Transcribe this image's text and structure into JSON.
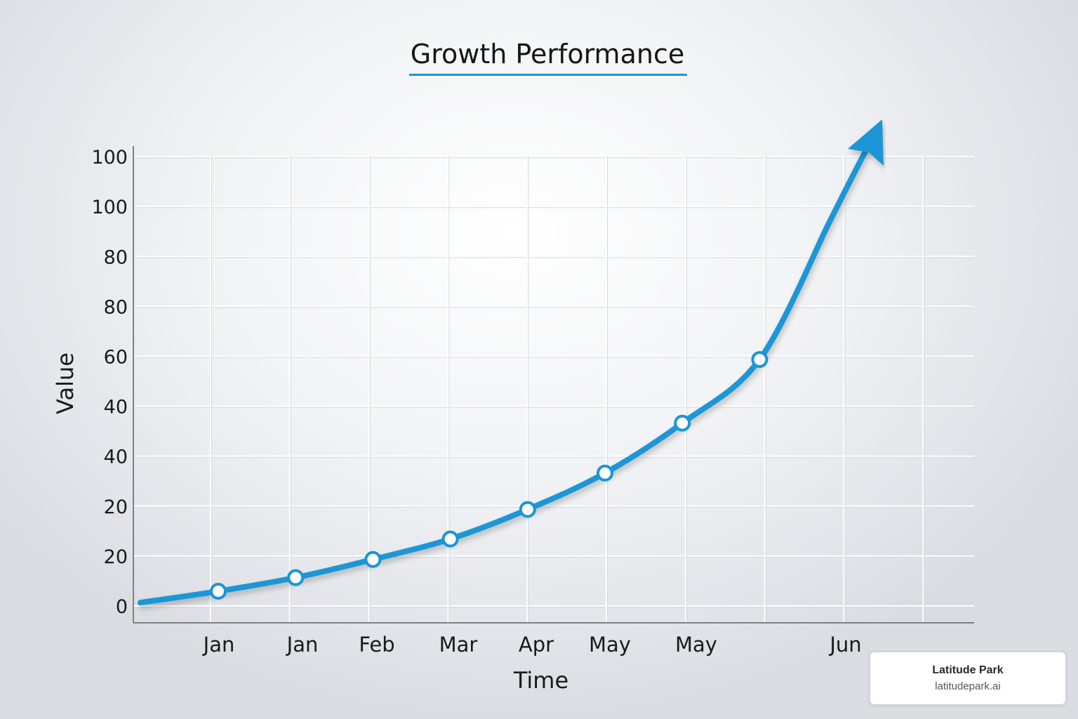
{
  "chart_data": {
    "type": "line",
    "title": "Growth Performance",
    "xlabel": "Time",
    "ylabel": "Value",
    "x_tick_labels": [
      "Jan",
      "Jan",
      "Feb",
      "Mar",
      "Apr",
      "May",
      "May",
      "",
      "Jun",
      ""
    ],
    "y_tick_labels": [
      "0",
      "20",
      "20",
      "40",
      "40",
      "60",
      "80",
      "80",
      "100",
      "100"
    ],
    "ylim": [
      0,
      100
    ],
    "grid": true,
    "series": [
      {
        "name": "Growth",
        "points": [
          {
            "x": 1,
            "y": 2,
            "marker": true
          },
          {
            "x": 2,
            "y": 5,
            "marker": true
          },
          {
            "x": 3,
            "y": 9,
            "marker": true
          },
          {
            "x": 4,
            "y": 13.5,
            "marker": true
          },
          {
            "x": 5,
            "y": 20,
            "marker": true
          },
          {
            "x": 6,
            "y": 28,
            "marker": true
          },
          {
            "x": 7,
            "y": 39,
            "marker": true
          },
          {
            "x": 8,
            "y": 53,
            "marker": true
          }
        ],
        "start": {
          "x": 0,
          "y": -0.5
        },
        "arrow_tip": {
          "x": 9.5,
          "y": 103
        },
        "color": "#1a96d6"
      }
    ],
    "accent_color": "#1a96d6"
  },
  "watermark": {
    "name": "Latitude Park",
    "url": "latitudepark.ai"
  }
}
